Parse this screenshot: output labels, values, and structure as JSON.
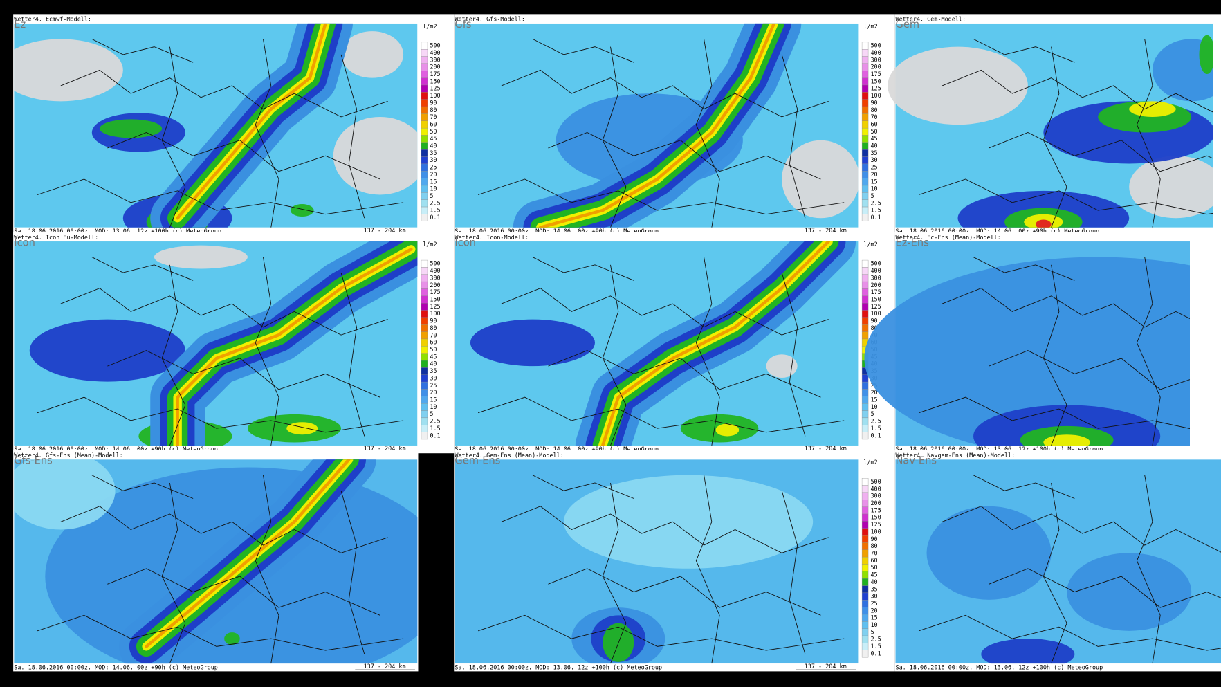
{
  "legend": {
    "unit": "l/m2",
    "values": [
      500,
      400,
      300,
      200,
      175,
      150,
      125,
      100,
      90,
      80,
      70,
      60,
      50,
      45,
      40,
      35,
      30,
      25,
      20,
      15,
      10,
      5,
      2.5,
      1.5,
      0.1
    ],
    "colors": [
      "#ffffff",
      "#f7d7f7",
      "#f0b0f0",
      "#e890e8",
      "#e060e0",
      "#d030d0",
      "#b000b0",
      "#e01010",
      "#f04000",
      "#f07000",
      "#f0a000",
      "#f0d000",
      "#f0f000",
      "#90e000",
      "#20b020",
      "#1030a0",
      "#2040d0",
      "#3070e0",
      "#4090e8",
      "#50a8ee",
      "#60c0f0",
      "#80d0f0",
      "#a0e0f0",
      "#c8eef8",
      "#f0f0f0"
    ]
  },
  "panels": [
    {
      "model": "Ez",
      "header": "Wetter4. Ecmwf-Modell:",
      "footer": "Sa. 18.06.2016 00:00z. MOD: 13.06. 12z +100h (c) MeteoGroup",
      "scale": "137 - 204 km"
    },
    {
      "model": "Gfs",
      "header": "Wetter4. Gfs-Modell:",
      "footer": "Sa. 18.06.2016 00:00z. MOD: 14.06. 00z +90h (c) MeteoGroup",
      "scale": "137 - 204 km"
    },
    {
      "model": "Gem",
      "header": "Wetter4. Gem-Modell:",
      "footer": "Sa. 18.06.2016 00:00z. MOD: 14.06. 00z +90h (c) MeteoGroup"
    },
    {
      "model": "Icon",
      "header": "Wetter4. Icon Eu-Modell:",
      "footer": "Sa. 18.06.2016 00:00z. MOD: 14.06. 00z +90h (c) MeteoGroup",
      "scale": "137 - 204 km"
    },
    {
      "model": "Icon",
      "header": "Wetter4. Icon-Modell:",
      "footer": "Sa. 18.06.2016 00:00z. MOD: 14.06. 00z +90h (c) MeteoGroup",
      "scale": "137 - 204 km"
    },
    {
      "model": "Ez-Ens",
      "header": "Wetter4. Ec-Ens (Mean)-Modell:",
      "footer": "Sa. 18.06.2016 00:00z. MOD: 13.06. 12z +100h (c) MeteoGroup"
    },
    {
      "model": "Gfs-Ens",
      "header": "Wetter4. Gfs-Ens (Mean)-Modell:",
      "footer": "Sa. 18.06.2016 00:00z. MOD: 14.06. 00z +90h (c) MeteoGroup",
      "scale": "137 - 204 km"
    },
    {
      "model": "Gem-Ens",
      "header": "Wetter4. Gem-Ens (Mean)-Modell:",
      "footer": "Sa. 18.06.2016 00:00z. MOD: 13.06. 12z +100h (c) MeteoGroup",
      "scale": "137 - 204 km"
    },
    {
      "model": "Nav-Ens",
      "header": "Wetter4. Navgem-Ens (Mean)-Modell:",
      "footer": "Sa. 18.06.2016 00:00z. MOD: 13.06. 12z +100h (c) MeteoGroup"
    }
  ]
}
